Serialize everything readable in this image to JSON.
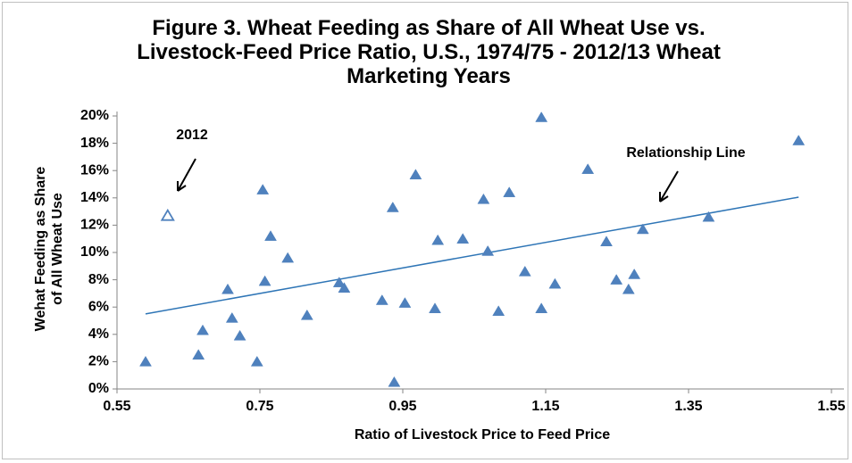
{
  "chart_data": {
    "type": "scatter",
    "title": "Figure 3.  Wheat Feeding as Share of All Wheat Use vs. Livestock-Feed Price Ratio, U.S., 1974/75 - 2012/13 Wheat Marketing Years",
    "xlabel": "Ratio of Livestock Price to Feed Price",
    "ylabel": "Wehat Feeding as Share of All Wheat Use",
    "xlim": [
      0.55,
      1.57
    ],
    "ylim": [
      0,
      20
    ],
    "xticks": [
      0.55,
      0.75,
      0.95,
      1.15,
      1.35,
      1.55
    ],
    "yticks": [
      {
        "value": 0,
        "label": "0%"
      },
      {
        "value": 2,
        "label": "2%"
      },
      {
        "value": 4,
        "label": "4%"
      },
      {
        "value": 6,
        "label": "6%"
      },
      {
        "value": 8,
        "label": "8%"
      },
      {
        "value": 10,
        "label": "10%"
      },
      {
        "value": 12,
        "label": "12%"
      },
      {
        "value": 14,
        "label": "14%"
      },
      {
        "value": 16,
        "label": "16%"
      },
      {
        "value": 18,
        "label": "18%"
      },
      {
        "value": 20,
        "label": "20%"
      }
    ],
    "grid": false,
    "series": [
      {
        "color": "#4f81bd",
        "filled": true,
        "x": [
          0.59,
          0.67,
          0.664,
          0.705,
          0.711,
          0.722,
          0.746,
          0.754,
          0.757,
          0.765,
          0.789,
          0.816,
          0.861,
          0.868,
          0.921,
          0.936,
          0.938,
          0.953,
          0.968,
          0.995,
          0.999,
          1.034,
          1.063,
          1.069,
          1.084,
          1.099,
          1.121,
          1.144,
          1.144,
          1.163,
          1.209,
          1.235,
          1.249,
          1.266,
          1.274,
          1.286,
          1.378,
          1.504
        ],
        "values": [
          2.0,
          4.3,
          2.5,
          7.3,
          5.2,
          3.9,
          2.0,
          14.6,
          7.9,
          11.2,
          9.6,
          5.4,
          7.8,
          7.4,
          6.5,
          13.3,
          0.5,
          6.3,
          15.7,
          5.9,
          10.9,
          11.0,
          13.9,
          10.1,
          5.7,
          14.4,
          8.6,
          19.9,
          5.9,
          7.7,
          16.1,
          10.8,
          8.0,
          7.3,
          8.4,
          11.7,
          12.6,
          18.2
        ]
      },
      {
        "color": "#4f81bd",
        "filled": false,
        "x": [
          0.621
        ],
        "values": [
          12.7
        ]
      }
    ],
    "trendline": {
      "color": "#2e75b6",
      "x": [
        0.59,
        1.504
      ],
      "values": [
        5.5,
        14.05
      ]
    },
    "annotations": [
      "2012",
      "Relationship Line"
    ]
  }
}
